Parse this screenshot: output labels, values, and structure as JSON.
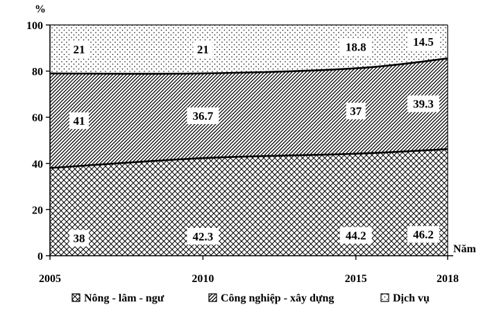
{
  "chart_data": {
    "type": "area",
    "stacked": true,
    "percent": true,
    "x": [
      "2005",
      "2010",
      "2015",
      "2018"
    ],
    "series": [
      {
        "name": "Nông - lâm - ngư",
        "values": [
          38,
          42.3,
          44.2,
          46.2
        ],
        "pattern": "crosshatch",
        "labels": [
          "38",
          "42.3",
          "44.2",
          "46.2"
        ]
      },
      {
        "name": "Công nghiệp - xây dựng",
        "values": [
          41,
          36.7,
          37,
          39.3
        ],
        "pattern": "diagonal",
        "labels": [
          "41",
          "36.7",
          "37",
          "39.3"
        ]
      },
      {
        "name": "Dịch vụ",
        "values": [
          21,
          21,
          18.8,
          14.5
        ],
        "pattern": "dots",
        "labels": [
          "21",
          "21",
          "18.8",
          "14.5"
        ]
      }
    ],
    "yticks": [
      "0",
      "20",
      "40",
      "60",
      "80",
      "100"
    ],
    "ylim": [
      0,
      100
    ],
    "yunit": "%",
    "xunit": "Năm",
    "legend_position": "bottom",
    "grid": false
  }
}
